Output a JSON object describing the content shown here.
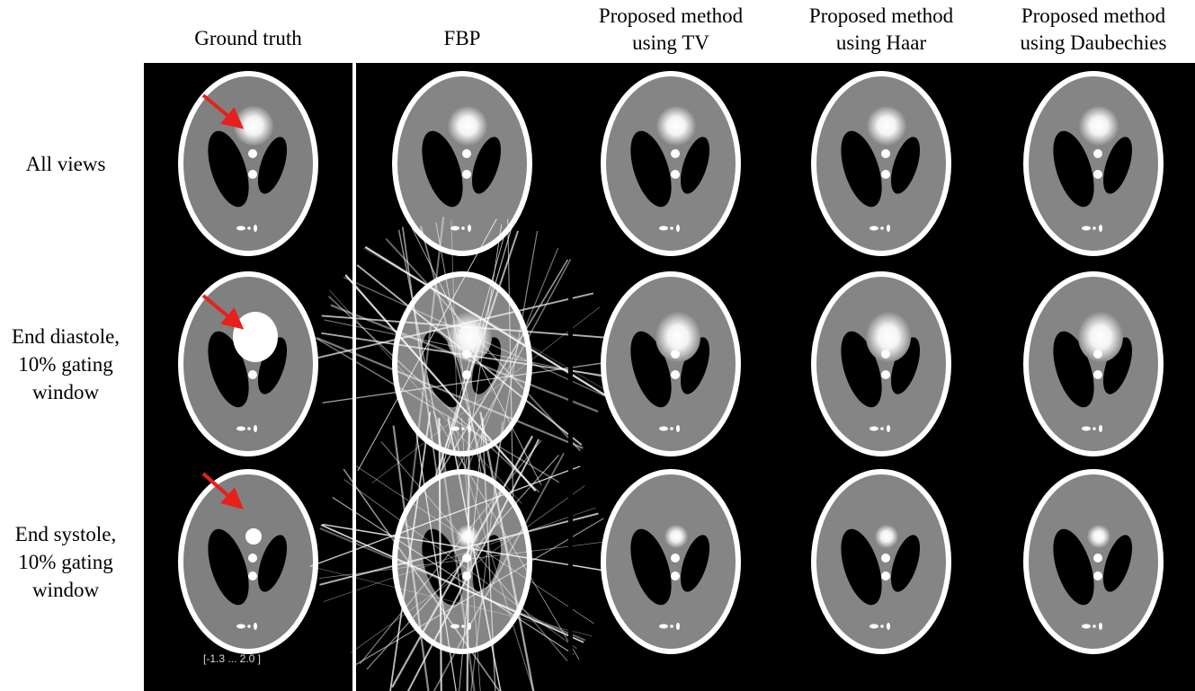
{
  "columns": [
    {
      "lines": [
        "Ground truth"
      ]
    },
    {
      "lines": [
        "FBP"
      ]
    },
    {
      "lines": [
        "Proposed method",
        "using TV"
      ]
    },
    {
      "lines": [
        "Proposed method",
        "using Haar"
      ]
    },
    {
      "lines": [
        "Proposed method",
        "using Daubechies"
      ]
    }
  ],
  "rows": [
    {
      "lines": [
        "All views"
      ]
    },
    {
      "lines": [
        "End diastole,",
        "10% gating",
        "window"
      ]
    },
    {
      "lines": [
        "End systole,",
        "10% gating",
        "window"
      ]
    }
  ],
  "colorbar_label": "[-1.3 ... 2.0 ]"
}
